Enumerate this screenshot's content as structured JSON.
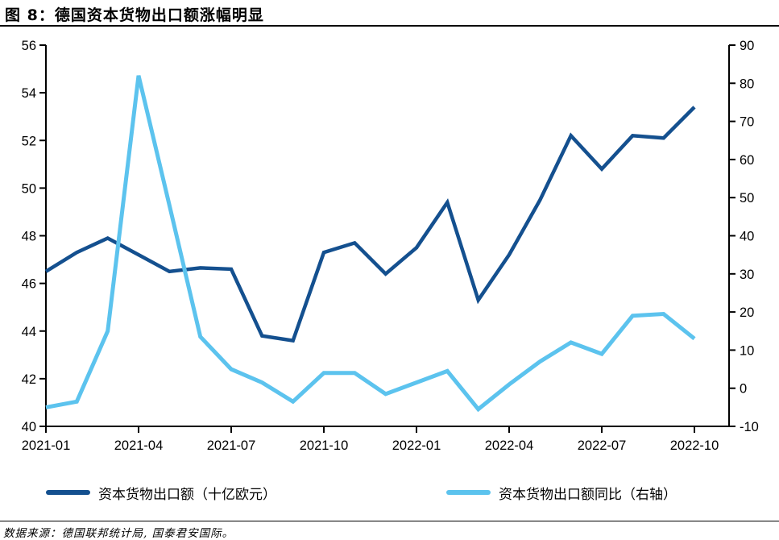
{
  "header": {
    "title": "图 8：德国资本货物出口额涨幅明显"
  },
  "colors": {
    "dark_blue": "#14508F",
    "light_blue": "#5CC3EE",
    "axis": "#000000"
  },
  "chart_data": {
    "type": "line",
    "x": [
      "2021-01",
      "2021-02",
      "2021-03",
      "2021-04",
      "2021-05",
      "2021-06",
      "2021-07",
      "2021-08",
      "2021-09",
      "2021-10",
      "2021-11",
      "2021-12",
      "2022-01",
      "2022-02",
      "2022-03",
      "2022-04",
      "2022-05",
      "2022-06",
      "2022-07",
      "2022-08",
      "2022-09",
      "2022-10"
    ],
    "series": [
      {
        "name": "资本货物出口额（十亿欧元）",
        "axis": "left",
        "color_key": "dark_blue",
        "values": [
          46.5,
          47.3,
          47.9,
          47.2,
          46.5,
          46.65,
          46.6,
          43.8,
          43.6,
          47.3,
          47.7,
          46.4,
          47.5,
          49.4,
          45.3,
          47.2,
          49.5,
          52.2,
          50.8,
          52.2,
          52.1,
          53.4
        ]
      },
      {
        "name": "资本货物出口额同比（右轴）",
        "axis": "right",
        "color_key": "light_blue",
        "values": [
          -5,
          -3.5,
          15,
          82,
          48,
          13.5,
          5,
          1.5,
          -3.5,
          4,
          4,
          -1.5,
          1.5,
          4.5,
          -5.5,
          1,
          7,
          12,
          9,
          19,
          19.5,
          13
        ]
      }
    ],
    "left_axis": {
      "min": 40,
      "max": 56,
      "ticks": [
        56,
        54,
        52,
        50,
        48,
        46,
        44,
        42,
        40
      ]
    },
    "right_axis": {
      "min": -10,
      "max": 90,
      "ticks": [
        90,
        80,
        70,
        60,
        50,
        40,
        30,
        20,
        10,
        0,
        -10
      ]
    },
    "x_tick_labels": [
      "2021-01",
      "2021-04",
      "2021-07",
      "2021-10",
      "2022-01",
      "2022-04",
      "2022-07",
      "2022-10"
    ],
    "x_tick_every": 3,
    "grid": false,
    "legend_position": "bottom"
  },
  "footer": {
    "source": "数据来源：德国联邦统计局, 国泰君安国际。"
  }
}
